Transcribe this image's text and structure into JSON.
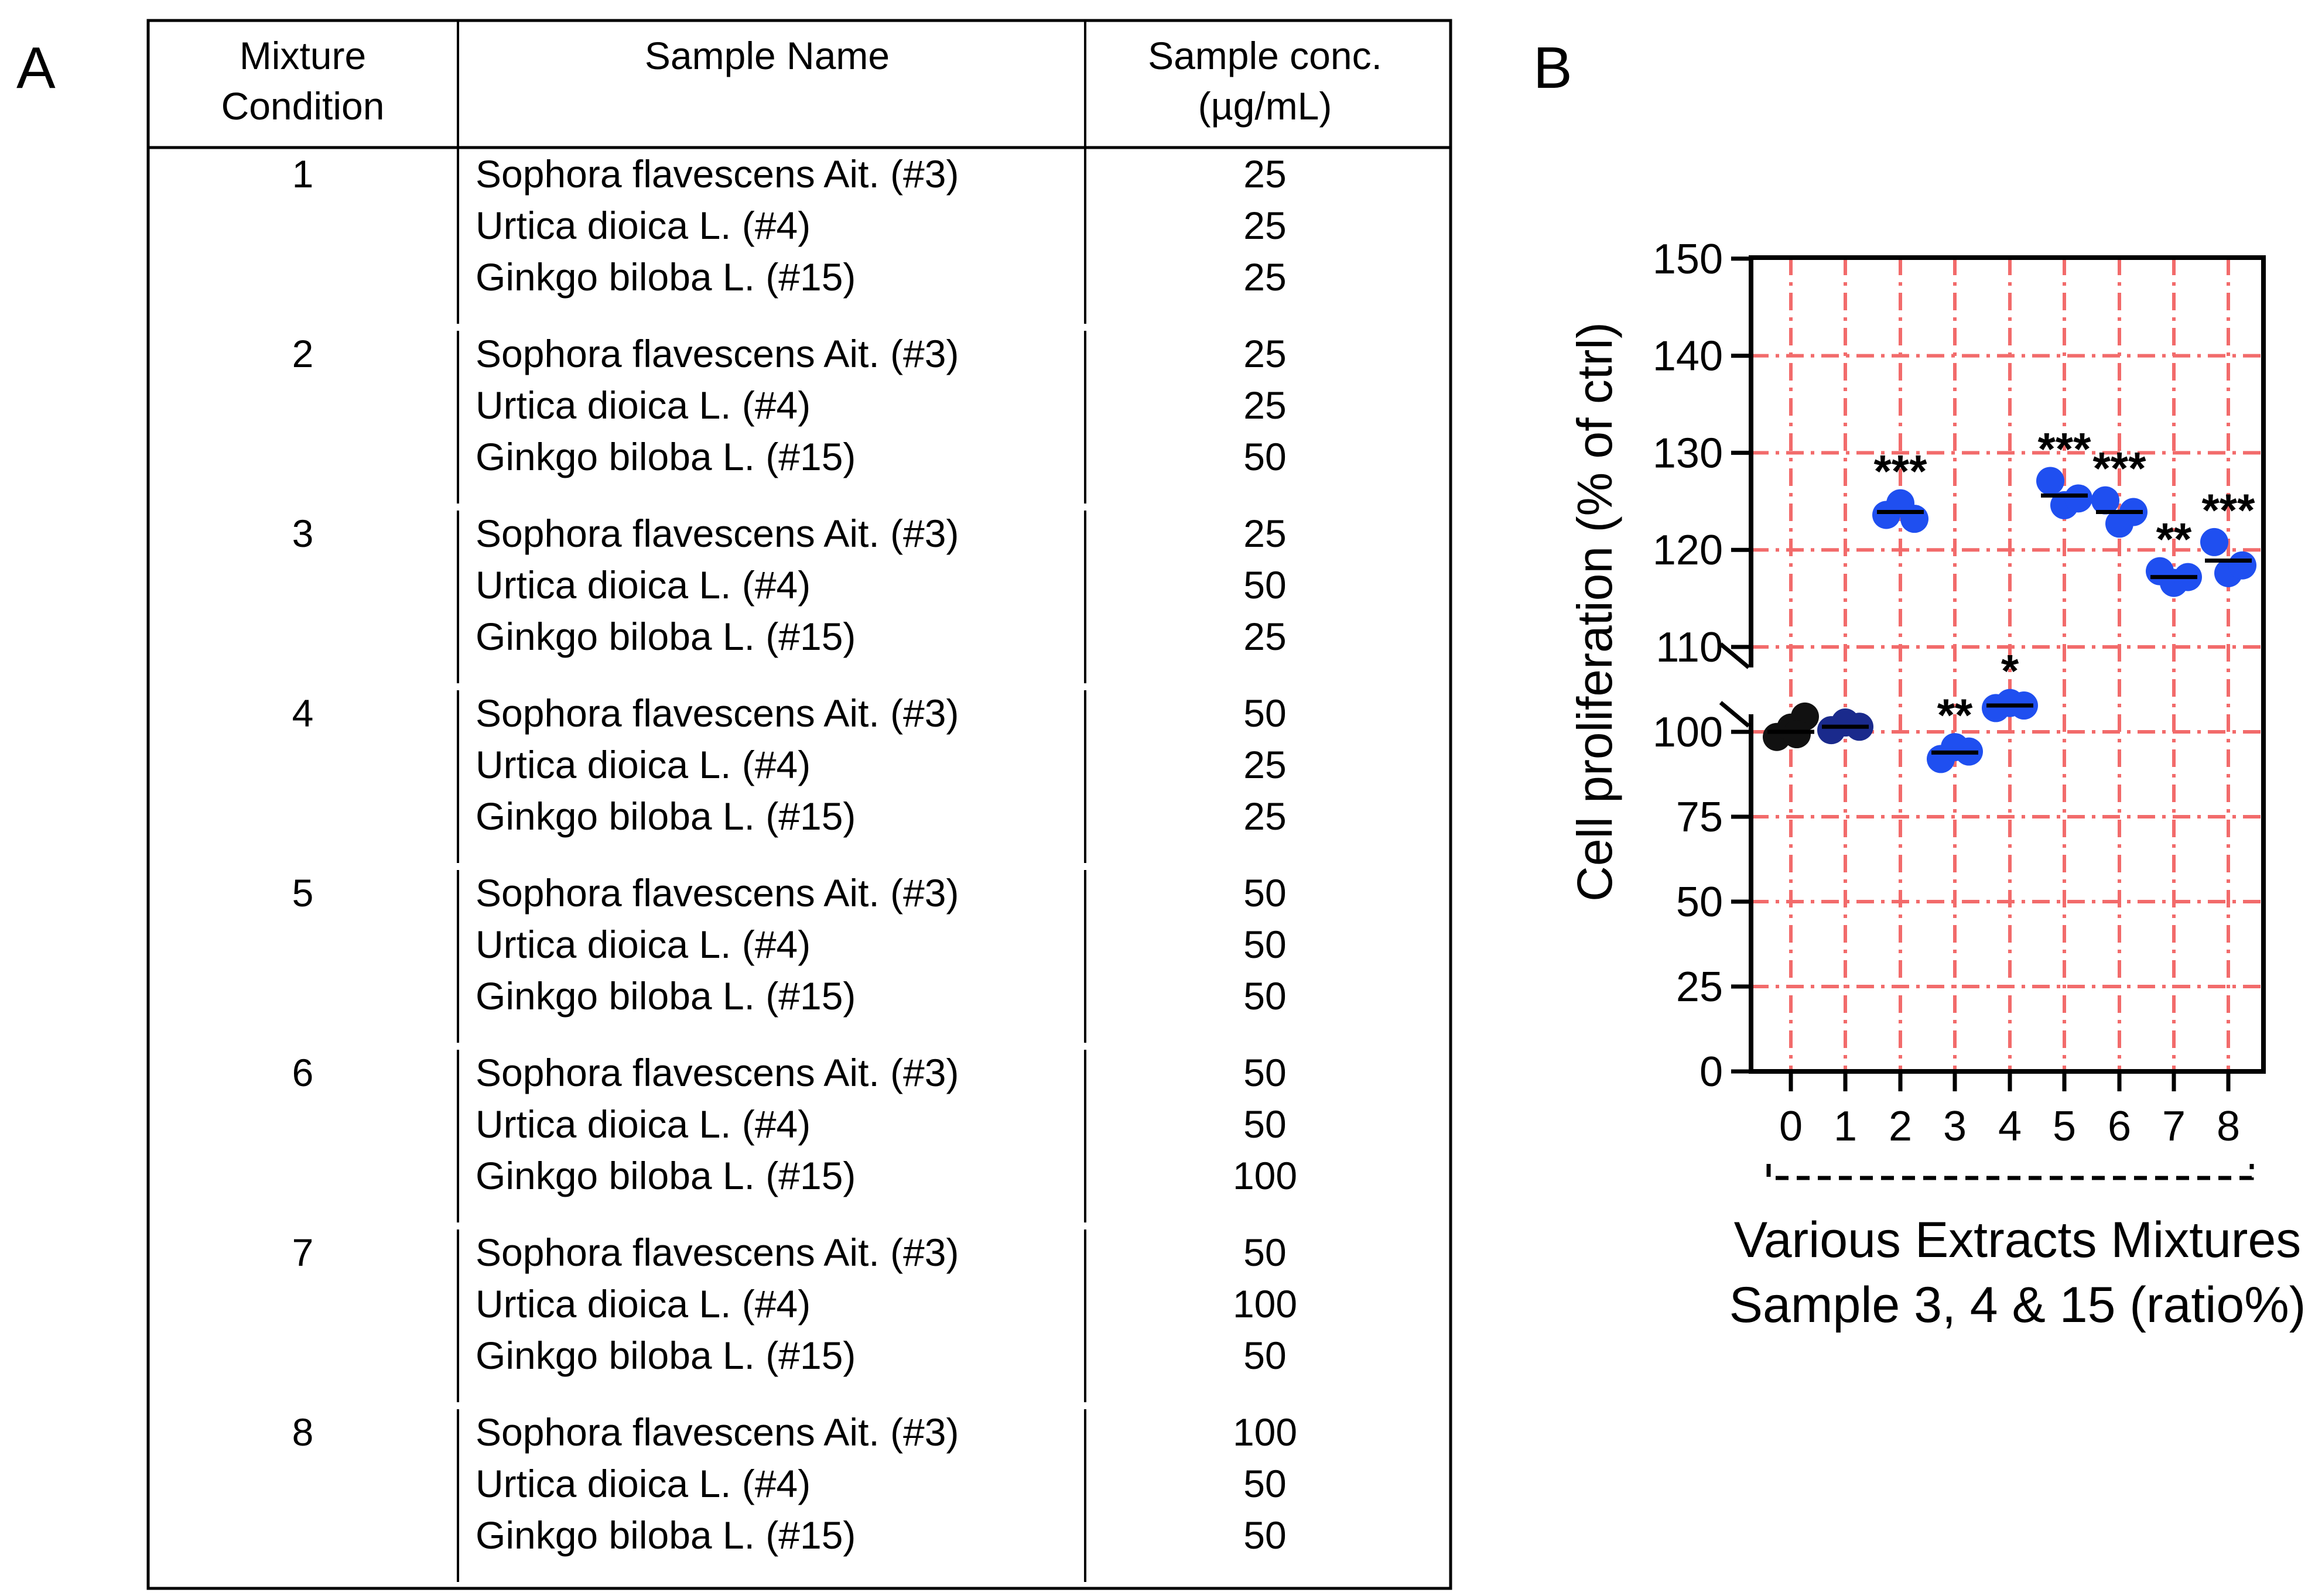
{
  "panel_labels": {
    "a": "A",
    "b": "B"
  },
  "table": {
    "headers": {
      "condition": [
        "Mixture",
        "Condition"
      ],
      "name": [
        "Sample Name"
      ],
      "conc": [
        "Sample conc.",
        "(µg/mL)"
      ]
    },
    "rows": [
      {
        "condition": "1",
        "samples": [
          {
            "name": "Sophora flavescens Ait. (#3)",
            "conc": "25"
          },
          {
            "name": "Urtica dioica L. (#4)",
            "conc": "25"
          },
          {
            "name": "Ginkgo biloba L. (#15)",
            "conc": "25"
          }
        ]
      },
      {
        "condition": "2",
        "samples": [
          {
            "name": "Sophora flavescens Ait. (#3)",
            "conc": "25"
          },
          {
            "name": "Urtica dioica L. (#4)",
            "conc": "25"
          },
          {
            "name": "Ginkgo biloba L. (#15)",
            "conc": "50"
          }
        ]
      },
      {
        "condition": "3",
        "samples": [
          {
            "name": "Sophora flavescens Ait. (#3)",
            "conc": "25"
          },
          {
            "name": "Urtica dioica L. (#4)",
            "conc": "50"
          },
          {
            "name": "Ginkgo biloba L. (#15)",
            "conc": "25"
          }
        ]
      },
      {
        "condition": "4",
        "samples": [
          {
            "name": "Sophora flavescens Ait. (#3)",
            "conc": "50"
          },
          {
            "name": "Urtica dioica L. (#4)",
            "conc": "25"
          },
          {
            "name": "Ginkgo biloba L. (#15)",
            "conc": "25"
          }
        ]
      },
      {
        "condition": "5",
        "samples": [
          {
            "name": "Sophora flavescens Ait. (#3)",
            "conc": "50"
          },
          {
            "name": "Urtica dioica L. (#4)",
            "conc": "50"
          },
          {
            "name": "Ginkgo biloba L. (#15)",
            "conc": "50"
          }
        ]
      },
      {
        "condition": "6",
        "samples": [
          {
            "name": "Sophora flavescens Ait. (#3)",
            "conc": "50"
          },
          {
            "name": "Urtica dioica L. (#4)",
            "conc": "50"
          },
          {
            "name": "Ginkgo biloba L. (#15)",
            "conc": "100"
          }
        ]
      },
      {
        "condition": "7",
        "samples": [
          {
            "name": "Sophora flavescens Ait. (#3)",
            "conc": "50"
          },
          {
            "name": "Urtica dioica L. (#4)",
            "conc": "100"
          },
          {
            "name": "Ginkgo biloba L. (#15)",
            "conc": "50"
          }
        ]
      },
      {
        "condition": "8",
        "samples": [
          {
            "name": "Sophora flavescens Ait. (#3)",
            "conc": "100"
          },
          {
            "name": "Urtica dioica L. (#4)",
            "conc": "50"
          },
          {
            "name": "Ginkgo biloba L. (#15)",
            "conc": "50"
          }
        ]
      }
    ]
  },
  "chart_data": {
    "type": "scatter",
    "title": "",
    "ylabel": "Cell proliferation (% of ctrl)",
    "xlabel_lines": [
      "Various Extracts Mixtures",
      "Sample 3, 4 & 15 (ratio%)"
    ],
    "categories": [
      "0",
      "1",
      "2",
      "3",
      "4",
      "5",
      "6",
      "7",
      "8"
    ],
    "y_ticks": [
      "0",
      "25",
      "50",
      "75",
      "100",
      "110",
      "120",
      "130",
      "140",
      "150"
    ],
    "ylim": [
      0,
      150
    ],
    "axis_break": [
      100,
      110
    ],
    "grid": true,
    "grid_style": "dash-dot",
    "colors": {
      "grid": "#f26b6b",
      "control": "#111111",
      "mixture1": "#1a2a8c",
      "mixtures": "#1f4ff0",
      "axis": "#000000"
    },
    "series": [
      {
        "category": "0",
        "points": [
          98.5,
          100.5,
          101.8,
          99.3
        ],
        "mean": 100,
        "significance": ""
      },
      {
        "category": "1",
        "points": [
          100.2,
          101.1,
          100.6
        ],
        "mean": 100.6,
        "significance": ""
      },
      {
        "category": "2",
        "points": [
          123.6,
          124.8,
          123.2
        ],
        "mean": 123.9,
        "significance": "***"
      },
      {
        "category": "3",
        "points": [
          92,
          95.5,
          94.2
        ],
        "mean": 93.9,
        "significance": "**"
      },
      {
        "category": "4",
        "points": [
          102.8,
          103.4,
          103.1
        ],
        "mean": 103.1,
        "significance": "*"
      },
      {
        "category": "5",
        "points": [
          127.1,
          124.6,
          125.3
        ],
        "mean": 125.6,
        "significance": "***"
      },
      {
        "category": "6",
        "points": [
          125.1,
          122.7,
          123.9
        ],
        "mean": 123.9,
        "significance": "***"
      },
      {
        "category": "7",
        "points": [
          117.8,
          116.6,
          117.2
        ],
        "mean": 117.2,
        "significance": "**"
      },
      {
        "category": "8",
        "points": [
          120.8,
          117.6,
          118.4
        ],
        "mean": 118.9,
        "significance": "***"
      }
    ]
  }
}
